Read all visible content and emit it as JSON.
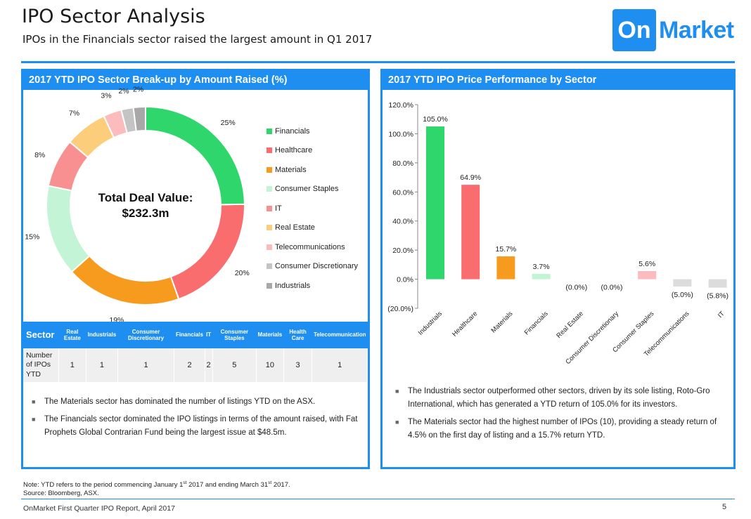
{
  "header": {
    "title": "IPO Sector Analysis",
    "subtitle": "IPOs in the Financials sector raised the largest amount in Q1 2017",
    "logo_on": "On",
    "logo_market": "Market"
  },
  "left_panel": {
    "title": "2017 YTD IPO Sector Break-up by Amount Raised (%)",
    "center_label_1": "Total Deal Value:",
    "center_label_2": "$232.3m",
    "table": {
      "header_first": "Sector",
      "columns": [
        "Real Estate",
        "Industrials",
        "Consumer Discretionary",
        "Financials",
        "IT",
        "Consumer Staples",
        "Materials",
        "Health Care",
        "Telecommunication"
      ],
      "row_label": "Number of IPOs YTD",
      "values": [
        "1",
        "1",
        "1",
        "2",
        "2",
        "5",
        "10",
        "3",
        "1"
      ]
    },
    "bullets": [
      "The Materials sector has dominated the number of listings YTD on the ASX.",
      "The Financials sector dominated the IPO listings in terms of the amount raised, with Fat Prophets Global Contrarian Fund being the largest issue at $48.5m."
    ]
  },
  "right_panel": {
    "title": "2017 YTD IPO Price Performance by Sector",
    "bullets": [
      "The Industrials sector outperformed other sectors, driven by its sole listing, Roto-Gro International, which has generated a YTD return of 105.0% for its investors.",
      "The Materials sector had the highest number of IPOs (10), providing a steady return of 4.5% on the first day of listing and a 15.7% return YTD."
    ]
  },
  "chart_data": [
    {
      "type": "pie",
      "variant": "donut",
      "title": "2017 YTD IPO Sector Break-up by Amount Raised (%)",
      "categories": [
        "Financials",
        "Healthcare",
        "Materials",
        "Consumer Staples",
        "IT",
        "Real Estate",
        "Telecommunications",
        "Consumer Discretionary",
        "Industrials"
      ],
      "values": [
        25,
        20,
        19,
        15,
        8,
        7,
        3,
        2,
        2
      ],
      "labels": [
        "25%",
        "20%",
        "19%",
        "15%",
        "8%",
        "7%",
        "3%",
        "2%",
        "2%"
      ],
      "colors": [
        "#2ed66b",
        "#f96d6f",
        "#f79b1f",
        "#c3f4d5",
        "#f88f90",
        "#fccd7a",
        "#fcbcbe",
        "#c4c4c4",
        "#a8a8a8"
      ],
      "legend": "right"
    },
    {
      "type": "bar",
      "title": "2017 YTD IPO Price Performance by Sector",
      "categories": [
        "Industrials",
        "Healthcare",
        "Materials",
        "Financials",
        "Real Estate",
        "Consumer Discretionary",
        "Consumer Staples",
        "Telecommunications",
        "IT"
      ],
      "values": [
        105.0,
        64.9,
        15.7,
        3.7,
        0.0,
        0.0,
        5.6,
        -5.0,
        -5.8
      ],
      "data_labels": [
        "105.0%",
        "64.9%",
        "15.7%",
        "3.7%",
        "(0.0%)",
        "(0.0%)",
        "5.6%",
        "(5.0%)",
        "(5.8%)"
      ],
      "colors": [
        "#2ed66b",
        "#f96d6f",
        "#f79b1f",
        "#c3f4d5",
        "#f88f90",
        "#fccd7a",
        "#fcbcbe",
        "#dcdcdc",
        "#dcdcdc"
      ],
      "ylim": [
        -20,
        120
      ],
      "yticks": [
        120,
        100,
        80,
        60,
        40,
        20,
        0,
        -20
      ],
      "ytick_labels": [
        "120.0%",
        "100.0%",
        "80.0%",
        "60.0%",
        "40.0%",
        "20.0%",
        "0.0%",
        "(20.0%)"
      ],
      "grid": false
    }
  ],
  "note": {
    "line1_a": "Note: YTD refers to the period commencing January 1",
    "sup1": "st",
    "line1_b": " 2017 and ending March 31",
    "sup2": "st",
    "line1_c": " 2017.",
    "line2": "Source: Bloomberg, ASX."
  },
  "footer": {
    "report": "OnMarket First Quarter IPO Report, April 2017",
    "page": "5"
  }
}
